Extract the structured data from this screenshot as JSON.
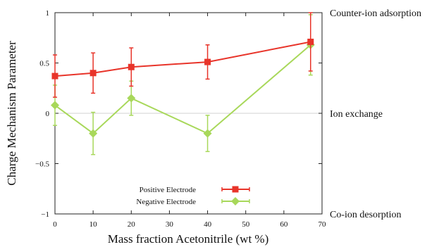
{
  "chart_data": {
    "type": "line",
    "xlabel": "Mass fraction Acetonitrile (wt %)",
    "ylabel": "Charge Mechanism Parameter",
    "xlim": [
      0,
      70
    ],
    "ylim": [
      -1,
      1
    ],
    "xticks": [
      0,
      10,
      20,
      30,
      40,
      50,
      60,
      70
    ],
    "yticks": [
      -1,
      -0.5,
      0,
      0.5,
      1
    ],
    "ytick_labels": [
      "−1",
      "−0.5",
      "0",
      "0.5",
      "1"
    ],
    "right_labels": [
      {
        "y": 1,
        "text": "Counter-ion adsorption"
      },
      {
        "y": 0,
        "text": "Ion exchange"
      },
      {
        "y": -1,
        "text": "Co-ion desorption"
      }
    ],
    "grid": false,
    "zero_line": true,
    "legend_position": "bottom-center",
    "series": [
      {
        "name": "Positive Electrode",
        "color": "#e8342a",
        "marker": "square",
        "x": [
          0,
          10,
          20,
          40,
          67
        ],
        "y": [
          0.37,
          0.4,
          0.46,
          0.51,
          0.71
        ],
        "err": [
          0.21,
          0.2,
          0.19,
          0.17,
          0.29
        ]
      },
      {
        "name": "Negative Electrode",
        "color": "#a8d85a",
        "marker": "diamond",
        "x": [
          0,
          10,
          20,
          40,
          67
        ],
        "y": [
          0.08,
          -0.2,
          0.15,
          -0.2,
          0.68
        ],
        "err": [
          0.2,
          0.21,
          0.17,
          0.18,
          0.3
        ]
      }
    ]
  }
}
